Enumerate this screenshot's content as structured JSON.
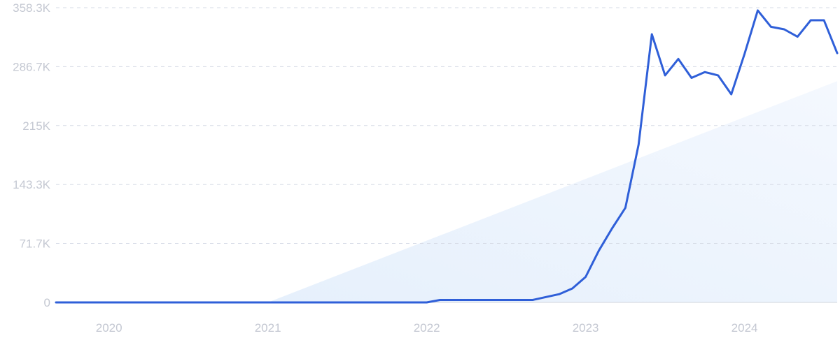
{
  "chart_data": {
    "type": "line",
    "title": "",
    "xlabel": "",
    "ylabel": "",
    "grid": true,
    "legend": "none",
    "colors": {
      "line": "#2f5fd8",
      "trend_fill": "#e8f1fd",
      "grid": "#d6dbe6",
      "tick_text": "#c4c8d2",
      "baseline": "#d0d4dc"
    },
    "x_tick_labels": [
      "2020",
      "2021",
      "2022",
      "2023",
      "2024"
    ],
    "y_tick_labels": [
      "0",
      "71.7K",
      "143.3K",
      "215K",
      "286.7K",
      "358.3K"
    ],
    "y_ticks": [
      0,
      71700,
      143300,
      215000,
      286700,
      358300
    ],
    "xlim": [
      "2019-09",
      "2024-08"
    ],
    "ylim": [
      0,
      358300
    ],
    "trend": {
      "start": {
        "x": "2021-01",
        "y": 0
      },
      "end": {
        "x": "2024-08",
        "y": 269000
      }
    },
    "series": [
      {
        "x": [
          "2019-09",
          "2019-10",
          "2019-11",
          "2019-12",
          "2020-01",
          "2020-02",
          "2020-03",
          "2020-04",
          "2020-05",
          "2020-06",
          "2020-07",
          "2020-08",
          "2020-09",
          "2020-10",
          "2020-11",
          "2020-12",
          "2021-01",
          "2021-02",
          "2021-03",
          "2021-04",
          "2021-05",
          "2021-06",
          "2021-07",
          "2021-08",
          "2021-09",
          "2021-10",
          "2021-11",
          "2021-12",
          "2022-01",
          "2022-02",
          "2022-03",
          "2022-04",
          "2022-05",
          "2022-06",
          "2022-07",
          "2022-08",
          "2022-09",
          "2022-10",
          "2022-11",
          "2022-12",
          "2023-01",
          "2023-02",
          "2023-03",
          "2023-04",
          "2023-05",
          "2023-06",
          "2023-07",
          "2023-08",
          "2023-09",
          "2023-10",
          "2023-11",
          "2023-12",
          "2024-01",
          "2024-02",
          "2024-03",
          "2024-04",
          "2024-05",
          "2024-06",
          "2024-07",
          "2024-08"
        ],
        "values": [
          0,
          0,
          0,
          0,
          0,
          0,
          0,
          0,
          0,
          0,
          0,
          0,
          0,
          0,
          0,
          0,
          0,
          0,
          0,
          0,
          0,
          0,
          0,
          0,
          0,
          0,
          0,
          0,
          0,
          3000,
          3000,
          3000,
          3000,
          3000,
          3000,
          3000,
          3000,
          6500,
          10000,
          17000,
          31000,
          63000,
          90000,
          115000,
          192000,
          326000,
          276000,
          296000,
          273000,
          280000,
          276000,
          253000,
          302000,
          355000,
          335000,
          332000,
          323000,
          343000,
          343000,
          303000
        ]
      }
    ]
  }
}
